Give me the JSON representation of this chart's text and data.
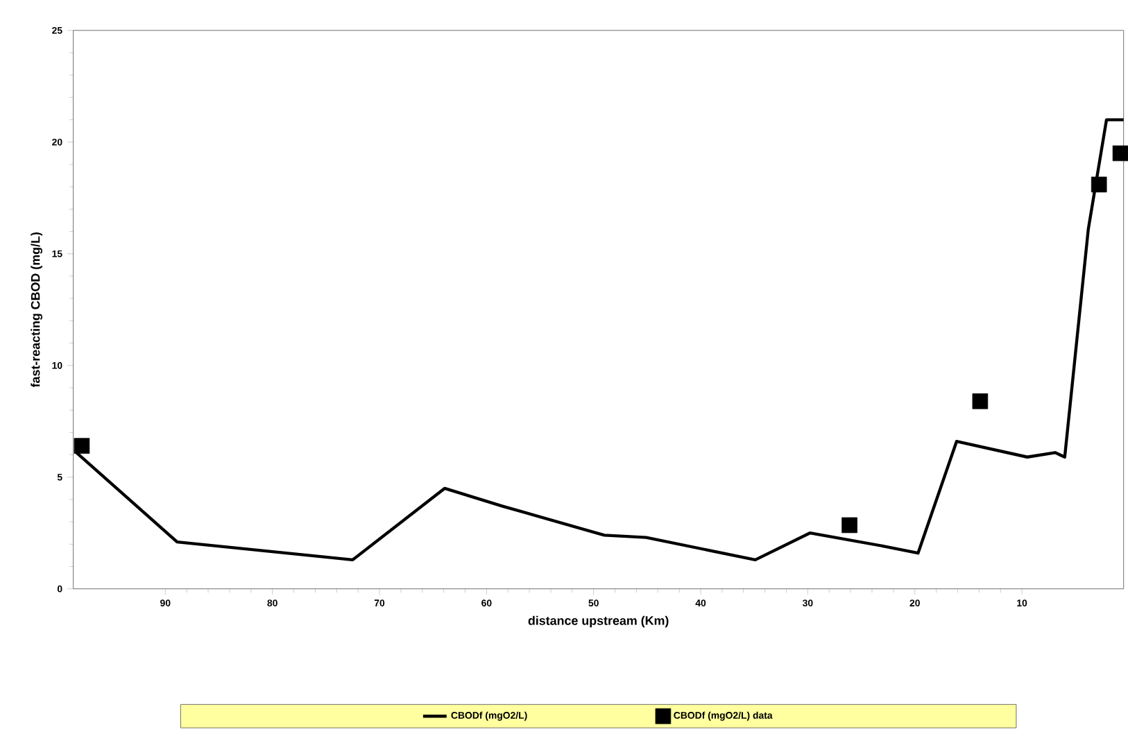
{
  "chart_data": {
    "type": "line",
    "xlabel": "distance upstream (Km)",
    "ylabel": "fast-reacting CBOD (mg/L)",
    "xlim": [
      98.6,
      0.5
    ],
    "xticks": [
      90,
      80,
      70,
      60,
      50,
      40,
      30,
      20,
      10
    ],
    "ylim": [
      0,
      25
    ],
    "yticks": [
      0,
      5,
      10,
      15,
      20,
      25
    ],
    "grid": false,
    "legend": "bottom",
    "series": [
      {
        "name": "CBODf (mgO2/L)",
        "color": "#000000",
        "marker": "none",
        "x": [
          98.3,
          88.9,
          72.5,
          63.9,
          58.5,
          49,
          45.1,
          34.9,
          29.8,
          22.8,
          19.7,
          16.1,
          9.5,
          6.9,
          6.0,
          3.8,
          2.1,
          0.5
        ],
        "values": [
          6.1,
          2.1,
          1.3,
          4.5,
          3.7,
          2.4,
          2.3,
          1.3,
          2.5,
          1.9,
          1.6,
          6.6,
          5.9,
          6.1,
          5.9,
          16.1,
          21.0,
          21.0
        ]
      },
      {
        "name": "CBODf (mgO2/L) data",
        "type": "scatter",
        "color": "#000000",
        "marker": "square",
        "x": [
          97.8,
          26.1,
          13.9,
          2.8,
          0.8
        ],
        "values": [
          6.4,
          2.85,
          8.4,
          18.1,
          19.5
        ]
      }
    ]
  }
}
